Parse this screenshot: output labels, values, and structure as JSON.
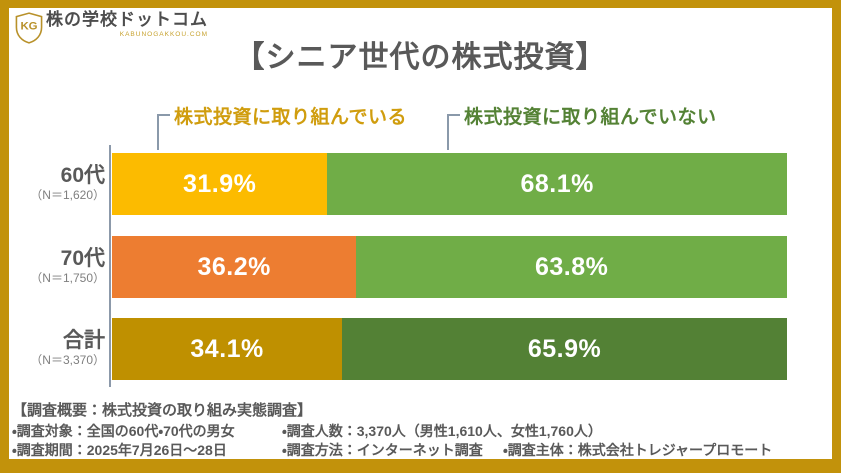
{
  "brand": {
    "logo_text": "株の学校ドットコム",
    "logo_sub": "KABUNOGAKKOU.COM",
    "logo_monogram": "KG"
  },
  "title": "【シニア世代の株式投資】",
  "legend": [
    {
      "label": "株式投資に取り組んでいる",
      "color": "#D09D0E"
    },
    {
      "label": "株式投資に取り組んでいない",
      "color": "#548235"
    }
  ],
  "chart_data": {
    "type": "bar",
    "orientation": "horizontal",
    "stacked": true,
    "title": "【シニア世代の株式投資】",
    "categories": [
      "60代",
      "70代",
      "合計"
    ],
    "category_notes": [
      "（N＝1,620）",
      "（N＝1,750）",
      "（N＝3,370）"
    ],
    "xlim": [
      0,
      100
    ],
    "grid": false,
    "legend_position": "top",
    "series": [
      {
        "name": "株式投資に取り組んでいる",
        "values": [
          31.9,
          36.2,
          34.1
        ],
        "labels": [
          "31.9%",
          "36.2%",
          "34.1%"
        ],
        "colors": [
          "#FCBB00",
          "#ED7D31",
          "#BF9000"
        ]
      },
      {
        "name": "株式投資に取り組んでいない",
        "values": [
          68.1,
          63.8,
          65.9
        ],
        "labels": [
          "68.1%",
          "63.8%",
          "65.9%"
        ],
        "colors": [
          "#70AD47",
          "#70AD47",
          "#538135"
        ]
      }
    ]
  },
  "footer": {
    "heading": "【調査概要：株式投資の取り組み実態調査】",
    "line2": [
      "・調査対象：全国の60代・70代の男女",
      "・調査人数：3,370人（男性1,610人、女性1,760人）"
    ],
    "line3": [
      "・調査期間：2025年7月26日～28日",
      "・調査方法：インターネット調査",
      "・調査主体：株式会社トレジャープロモート"
    ]
  },
  "colors": {
    "frame_border": "#C2920B",
    "title_text": "#595959",
    "axis_line": "#8C99AA",
    "bar_value_text": "#ffffff",
    "footer_text": "#595959"
  }
}
